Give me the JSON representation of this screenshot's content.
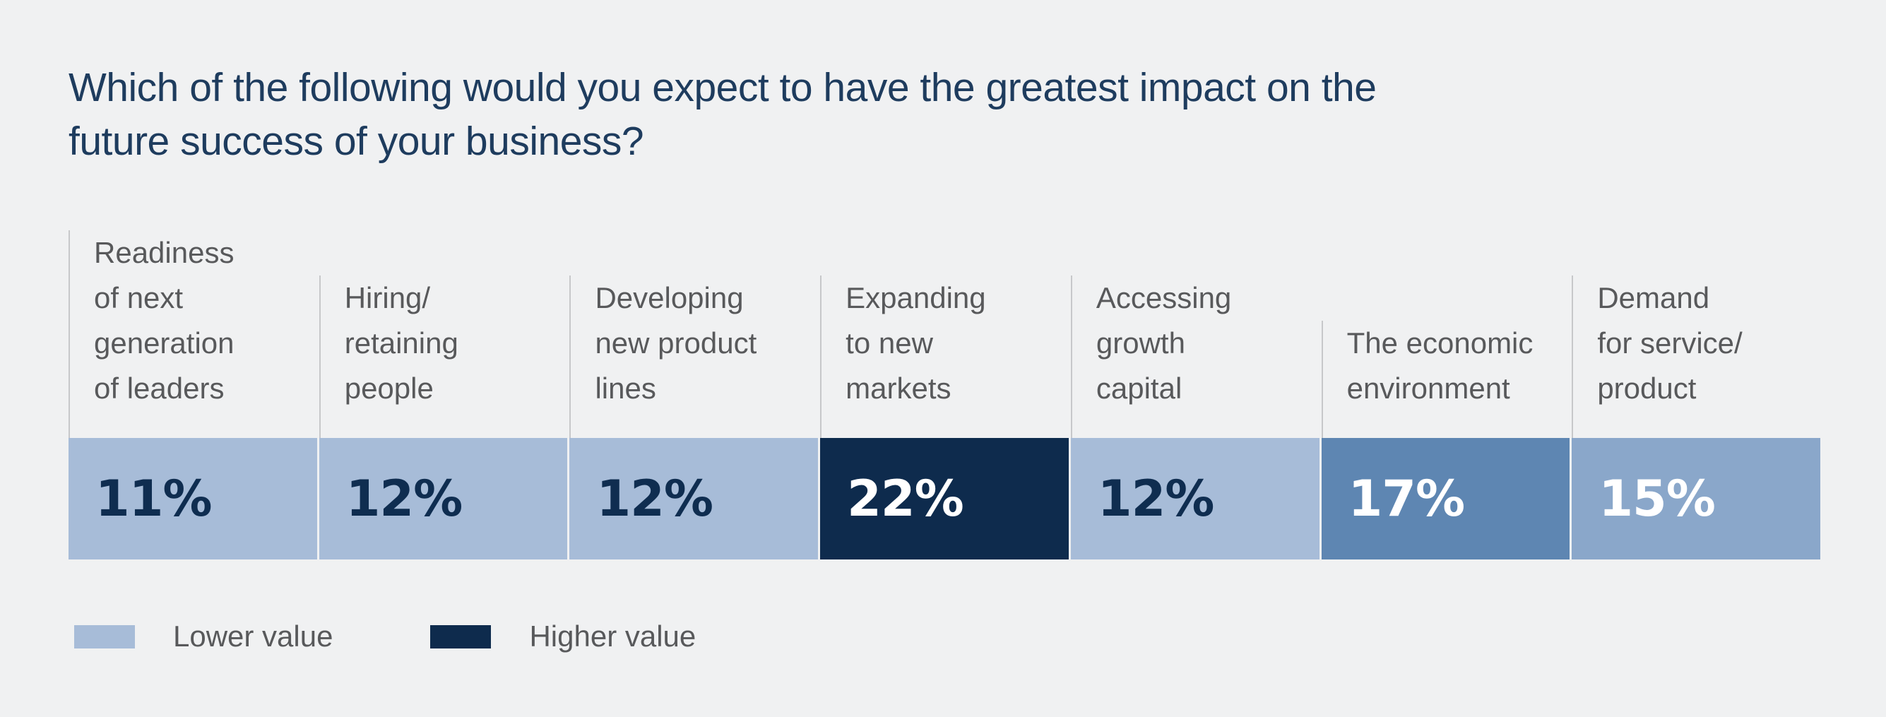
{
  "title": {
    "full": "Which of the following would you expect to have the greatest impact on the future success of your business?",
    "lines": [
      "Which of the following would you expect to have the greatest impact on the",
      "future success of your business?"
    ],
    "color": "#1e3c5e"
  },
  "chart_data": {
    "type": "bar",
    "title": "Which of the following would you expect to have the greatest impact on the future success of your business?",
    "categories": [
      "Readiness of next generation of leaders",
      "Hiring/retaining people",
      "Developing new product lines",
      "Expanding to new markets",
      "Accessing growth capital",
      "The economic environment",
      "Demand for service/product"
    ],
    "values": [
      11,
      12,
      12,
      22,
      12,
      17,
      15
    ],
    "unit": "%",
    "value_labels": [
      "11%",
      "12%",
      "12%",
      "22%",
      "12%",
      "17%",
      "15%"
    ],
    "layout": "single horizontal band, 7 equal-width segments, shade encodes value",
    "legend_position": "bottom-left",
    "segments": [
      {
        "label_lines": [
          "Readiness",
          "of next",
          "generation",
          "of leaders"
        ],
        "value_label": "11%",
        "bg": "#a7bcd8",
        "text_color": "#0f2d50"
      },
      {
        "label_lines": [
          "Hiring/",
          "retaining",
          "people"
        ],
        "value_label": "12%",
        "bg": "#a7bcd8",
        "text_color": "#0f2d50"
      },
      {
        "label_lines": [
          "Developing",
          "new product",
          "lines"
        ],
        "value_label": "12%",
        "bg": "#a7bcd8",
        "text_color": "#0f2d50"
      },
      {
        "label_lines": [
          "Expanding",
          "to new",
          "markets"
        ],
        "value_label": "22%",
        "bg": "#0e2b4d",
        "text_color": "#ffffff"
      },
      {
        "label_lines": [
          "Accessing",
          "growth",
          "capital"
        ],
        "value_label": "12%",
        "bg": "#a7bcd8",
        "text_color": "#0f2d50"
      },
      {
        "label_lines": [
          "The economic",
          "environment"
        ],
        "value_label": "17%",
        "bg": "#5e86b2",
        "text_color": "#ffffff"
      },
      {
        "label_lines": [
          "Demand",
          "for service/",
          "product"
        ],
        "value_label": "15%",
        "bg": "#8aa7ca",
        "text_color": "#ffffff"
      }
    ],
    "legend": [
      {
        "label": "Lower value",
        "color": "#a7bcd8"
      },
      {
        "label": "Higher value",
        "color": "#0e2b4d"
      }
    ]
  },
  "colors": {
    "background": "#f0f1f2",
    "label_text": "#58595b",
    "divider": "#c7c8ca",
    "lower_value": "#a7bcd8",
    "higher_value": "#0e2b4d",
    "mid_value_17": "#5e86b2",
    "mid_value_15": "#8aa7ca"
  }
}
